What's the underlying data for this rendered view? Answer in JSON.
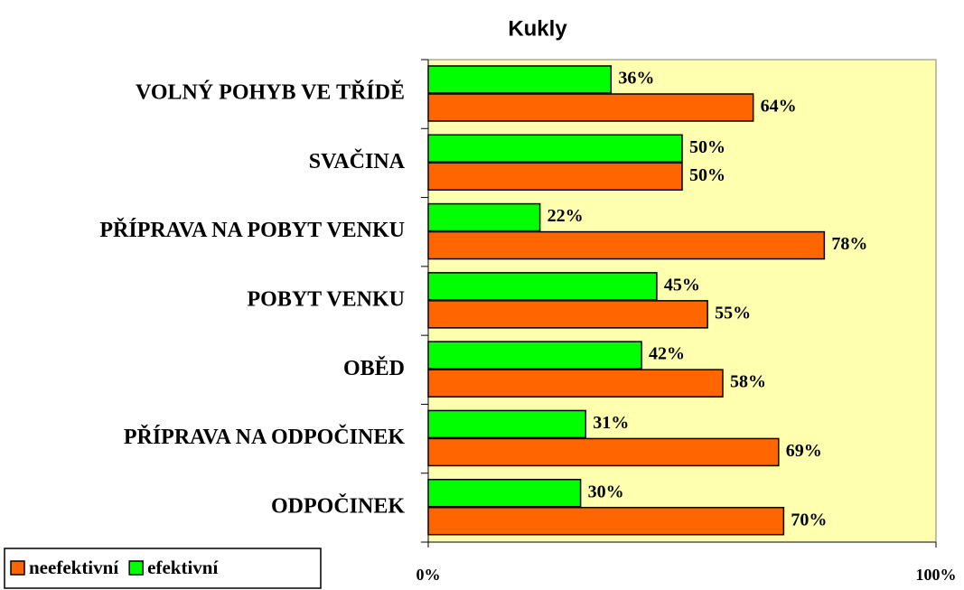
{
  "chart_data": {
    "type": "bar",
    "orientation": "horizontal",
    "title": "Kukly",
    "categories": [
      "VOLNÝ POHYB VE TŘÍDĚ",
      "SVAČINA",
      "PŘÍPRAVA NA POBYT VENKU",
      "POBYT VENKU",
      "OBĚD",
      "PŘÍPRAVA NA ODPOČINEK",
      "ODPOČINEK"
    ],
    "series": [
      {
        "name": "neefektivní",
        "color": "#ff6600",
        "values": [
          64,
          50,
          78,
          55,
          58,
          69,
          70
        ],
        "value_labels": [
          "64%",
          "50%",
          "78%",
          "55%",
          "58%",
          "69%",
          "70%"
        ]
      },
      {
        "name": "efektivní",
        "color": "#00ff00",
        "values": [
          36,
          50,
          22,
          45,
          42,
          31,
          30
        ],
        "value_labels": [
          "36%",
          "50%",
          "22%",
          "45%",
          "42%",
          "31%",
          "30%"
        ]
      }
    ],
    "xlim": [
      0,
      100
    ],
    "xticks": [
      {
        "value": 0,
        "label": "0%"
      },
      {
        "value": 100,
        "label": "100%"
      }
    ],
    "legend": "bottom-left"
  }
}
